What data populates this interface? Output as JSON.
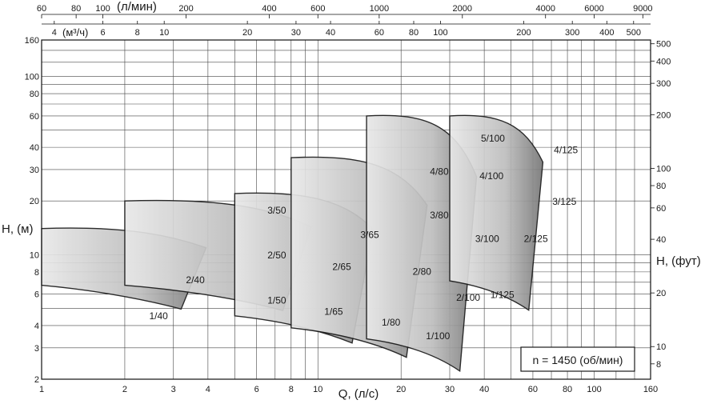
{
  "chart_data": {
    "type": "area",
    "title": "",
    "xlabel": "Q, (л/с)",
    "ylabel": "H, (м)",
    "ylabel_right": "H, (фут)",
    "top_axis_lpm_label": "(л/мин)",
    "top_axis_m3h_label": "(м³/ч)",
    "speed_note": "n = 1450 (об/мин)",
    "xscale": "log",
    "yscale": "log",
    "xlim": [
      1,
      160
    ],
    "ylim": [
      2,
      160
    ],
    "grid": true,
    "x_ticks": [
      1,
      2,
      3,
      4,
      6,
      8,
      10,
      20,
      30,
      40,
      60,
      80,
      100,
      160
    ],
    "y_ticks": [
      2,
      3,
      4,
      6,
      8,
      10,
      20,
      30,
      40,
      60,
      80,
      100,
      160
    ],
    "ft_ticks": [
      8,
      10,
      20,
      40,
      60,
      80,
      100,
      200,
      300,
      400,
      500
    ],
    "lpm_ticks": [
      60,
      80,
      100,
      200,
      400,
      600,
      1000,
      2000,
      4000,
      6000,
      9000
    ],
    "m3h_ticks": [
      4,
      6,
      8,
      10,
      20,
      30,
      40,
      60,
      80,
      100,
      200,
      300,
      400,
      500
    ],
    "pump_fields": [
      {
        "name": "1/40",
        "x": [
          1.0,
          3.4
        ],
        "y": [
          5.2,
          14.0
        ],
        "xr": 3.3
      },
      {
        "name": "2/40",
        "x": [
          1.0,
          3.4
        ],
        "y": [
          5.2,
          14.0
        ],
        "xr": 3.3
      },
      {
        "name": "1/50",
        "x": [
          2.0,
          8.0
        ],
        "y": [
          5.2,
          20.0
        ],
        "xr": 4.5
      },
      {
        "name": "2/50",
        "x": [
          2.0,
          8.0
        ],
        "y": [
          5.2,
          20.0
        ],
        "xr": 4.5
      },
      {
        "name": "3/50",
        "x": [
          2.0,
          8.0
        ],
        "y": [
          5.2,
          20.0
        ],
        "xr": 4.5
      },
      {
        "name": "1/65",
        "x": [
          5.0,
          14.0
        ],
        "y": [
          3.5,
          22.0
        ],
        "xr": 4.5
      },
      {
        "name": "2/65",
        "x": [
          5.0,
          14.0
        ],
        "y": [
          3.5,
          22.0
        ],
        "xr": 4.5
      },
      {
        "name": "3/65",
        "x": [
          5.0,
          14.0
        ],
        "y": [
          3.5,
          22.0
        ],
        "xr": 4.5
      },
      {
        "name": "1/80",
        "x": [
          8.0,
          22.0
        ],
        "y": [
          3.0,
          35.0
        ],
        "xr": 5.0
      },
      {
        "name": "2/80",
        "x": [
          8.0,
          22.0
        ],
        "y": [
          3.0,
          35.0
        ],
        "xr": 5.0
      },
      {
        "name": "3/80",
        "x": [
          8.0,
          22.0
        ],
        "y": [
          3.0,
          35.0
        ],
        "xr": 5.0
      },
      {
        "name": "4/80",
        "x": [
          8.0,
          22.0
        ],
        "y": [
          3.0,
          35.0
        ],
        "xr": 5.0
      },
      {
        "name": "1/100",
        "x": [
          15.0,
          34.0
        ],
        "y": [
          2.6,
          60.0
        ],
        "xr": 4.0
      },
      {
        "name": "2/100",
        "x": [
          15.0,
          34.0
        ],
        "y": [
          2.6,
          60.0
        ],
        "xr": 4.0
      },
      {
        "name": "3/100",
        "x": [
          15.0,
          34.0
        ],
        "y": [
          2.6,
          60.0
        ],
        "xr": 4.0
      },
      {
        "name": "4/100",
        "x": [
          15.0,
          34.0
        ],
        "y": [
          2.6,
          60.0
        ],
        "xr": 4.0
      },
      {
        "name": "5/100",
        "x": [
          15.0,
          34.0
        ],
        "y": [
          2.6,
          60.0
        ],
        "xr": 4.0
      },
      {
        "name": "1/125",
        "x": [
          30.0,
          60.0
        ],
        "y": [
          5.5,
          60.0
        ],
        "xr": 2.6
      },
      {
        "name": "2/125",
        "x": [
          30.0,
          60.0
        ],
        "y": [
          5.5,
          60.0
        ],
        "xr": 2.6
      },
      {
        "name": "3/125",
        "x": [
          30.0,
          60.0
        ],
        "y": [
          5.5,
          60.0
        ],
        "xr": 2.6
      },
      {
        "name": "4/125",
        "x": [
          30.0,
          60.0
        ],
        "y": [
          5.5,
          60.0
        ],
        "xr": 2.6
      }
    ],
    "curve_labels": [
      {
        "name": "1/40",
        "x": 2.65,
        "y": 4.35
      },
      {
        "name": "2/40",
        "x": 3.6,
        "y": 6.9
      },
      {
        "name": "1/50",
        "x": 7.1,
        "y": 5.3
      },
      {
        "name": "2/50",
        "x": 7.1,
        "y": 9.5
      },
      {
        "name": "3/50",
        "x": 7.1,
        "y": 17.0
      },
      {
        "name": "1/65",
        "x": 11.4,
        "y": 4.6
      },
      {
        "name": "2/65",
        "x": 12.2,
        "y": 8.2
      },
      {
        "name": "3/65",
        "x": 15.4,
        "y": 12.4
      },
      {
        "name": "1/80",
        "x": 18.4,
        "y": 4.0
      },
      {
        "name": "2/80",
        "x": 23.8,
        "y": 7.7
      },
      {
        "name": "3/80",
        "x": 27.5,
        "y": 16.0
      },
      {
        "name": "4/80",
        "x": 27.5,
        "y": 28.0
      },
      {
        "name": "1/100",
        "x": 27.2,
        "y": 3.35
      },
      {
        "name": "2/100",
        "x": 35.0,
        "y": 5.5
      },
      {
        "name": "3/100",
        "x": 41.0,
        "y": 11.8
      },
      {
        "name": "4/100",
        "x": 42.5,
        "y": 26.5
      },
      {
        "name": "5/100",
        "x": 43.0,
        "y": 43.0
      },
      {
        "name": "1/125",
        "x": 46.5,
        "y": 5.7
      },
      {
        "name": "2/125",
        "x": 61.5,
        "y": 11.8
      },
      {
        "name": "3/125",
        "x": 78.0,
        "y": 19.0
      },
      {
        "name": "4/125",
        "x": 79.0,
        "y": 37.0
      }
    ]
  }
}
